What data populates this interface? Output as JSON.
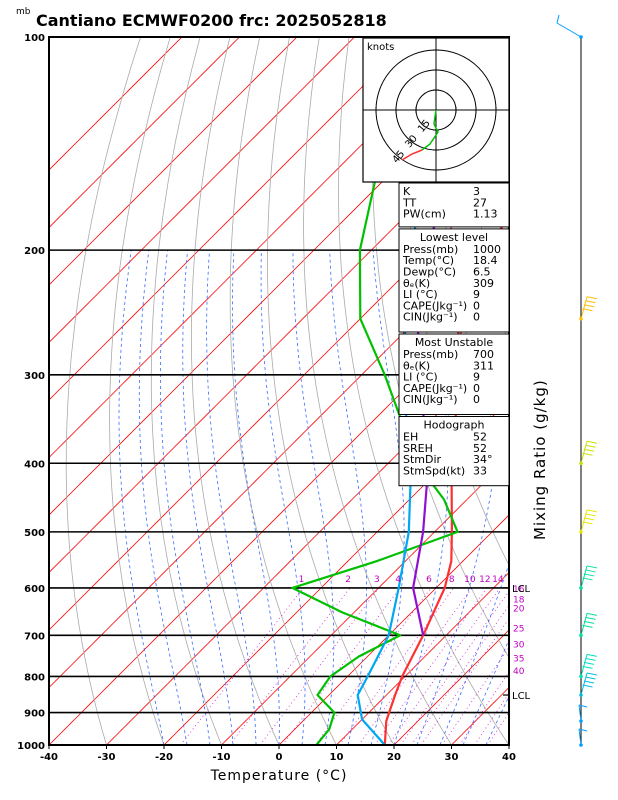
{
  "title": "Cantiano ECMWF0200  frc: 2025052818",
  "pressure_unit": "mb",
  "hodograph_unit": "knots",
  "x_axis_title": "Temperature (°C)",
  "mixing_ratio_title": "Mixing Ratio  (g/kg)",
  "lcl_label": "LCL",
  "chart_data": {
    "type": "line",
    "title": "Cantiano ECMWF0200  frc: 2025052818",
    "xlabel": "Temperature (°C)",
    "ylabel": "",
    "x_range": [
      -40,
      40
    ],
    "y_range": [
      1000,
      100
    ],
    "y_scale": "log-pressure",
    "x_ticks": [
      -40,
      -30,
      -20,
      -10,
      0,
      10,
      20,
      30,
      40
    ],
    "pressure_levels": [
      100,
      200,
      300,
      400,
      500,
      600,
      700,
      800,
      900,
      1000
    ],
    "mixing_ratio_labels": [
      "1",
      "2",
      "3",
      "4",
      "6",
      "8",
      "10",
      "12",
      "14",
      "16",
      "18",
      "20",
      "25",
      "30",
      "35",
      "40"
    ],
    "series": [
      {
        "color": "#ff3030",
        "style": "temperature",
        "points": [
          [
            1000,
            18.4
          ],
          [
            925,
            14.5
          ],
          [
            850,
            11.5
          ],
          [
            800,
            9.5
          ],
          [
            700,
            6.0
          ],
          [
            600,
            1.5
          ],
          [
            550,
            -2.0
          ],
          [
            500,
            -7.0
          ],
          [
            400,
            -19.0
          ],
          [
            300,
            -33.0
          ],
          [
            250,
            -43.0
          ],
          [
            200,
            -50.0
          ],
          [
            150,
            -55.0
          ],
          [
            100,
            -58.0
          ]
        ]
      },
      {
        "color": "#00c000",
        "style": "dewpoint",
        "points": [
          [
            1000,
            6.5
          ],
          [
            950,
            6.0
          ],
          [
            900,
            4.0
          ],
          [
            850,
            -2.0
          ],
          [
            800,
            -3.0
          ],
          [
            750,
            -1.5
          ],
          [
            700,
            2.0
          ],
          [
            650,
            -12.0
          ],
          [
            600,
            -25.0
          ],
          [
            550,
            -15.0
          ],
          [
            500,
            -6.0
          ],
          [
            450,
            -14.0
          ],
          [
            400,
            -25.0
          ],
          [
            300,
            -46.0
          ],
          [
            250,
            -60.0
          ],
          [
            200,
            -72.0
          ],
          [
            150,
            -84.0
          ],
          [
            100,
            -98.0
          ]
        ]
      },
      {
        "color": "#9010d0",
        "style": "parcel",
        "points": [
          [
            700,
            6.0
          ],
          [
            600,
            -4.0
          ],
          [
            500,
            -12.0
          ],
          [
            400,
            -23.0
          ],
          [
            300,
            -40.0
          ],
          [
            250,
            -50.0
          ],
          [
            200,
            -60.0
          ],
          [
            150,
            -72.0
          ],
          [
            120,
            -80.0
          ]
        ]
      },
      {
        "color": "#00a8f0",
        "style": "virtual",
        "points": [
          [
            1000,
            18.4
          ],
          [
            920,
            10.0
          ],
          [
            850,
            5.0
          ],
          [
            800,
            3.5
          ],
          [
            700,
            0.0
          ],
          [
            600,
            -6.5
          ],
          [
            500,
            -14.5
          ],
          [
            400,
            -26.0
          ],
          [
            300,
            -43.0
          ],
          [
            250,
            -52.0
          ],
          [
            200,
            -63.0
          ],
          [
            150,
            -76.0
          ],
          [
            120,
            -83.0
          ]
        ]
      }
    ],
    "lcl_markers": [
      {
        "pressure": 600,
        "label": "LCL"
      },
      {
        "pressure": 850,
        "label": "LCL"
      }
    ]
  },
  "hodograph": {
    "rings": [
      15,
      30,
      45
    ],
    "ring_labels": [
      "15",
      "30",
      "45"
    ]
  },
  "indices": {
    "rows": [
      {
        "label": "K",
        "value": "3"
      },
      {
        "label": "TT",
        "value": "27"
      },
      {
        "label": "PW(cm)",
        "value": "1.13"
      }
    ]
  },
  "lowest_level": {
    "header": "Lowest level",
    "rows": [
      {
        "label": "Press(mb)",
        "value": "1000"
      },
      {
        "label": "Temp(°C)",
        "value": "18.4"
      },
      {
        "label": "Dewp(°C)",
        "value": "6.5"
      },
      {
        "label": "θₑ(K)",
        "value": "309"
      },
      {
        "label": "LI  (°C)",
        "value": "9"
      },
      {
        "label": "CAPE(Jkg⁻¹)",
        "value": "0"
      },
      {
        "label": "CIN(Jkg⁻¹)",
        "value": "0"
      }
    ]
  },
  "most_unstable": {
    "header": "Most Unstable",
    "rows": [
      {
        "label": "Press(mb)",
        "value": "700"
      },
      {
        "label": "θₑ(K)",
        "value": "311"
      },
      {
        "label": "LI  (°C)",
        "value": "9"
      },
      {
        "label": "CAPE(Jkg⁻¹)",
        "value": "0"
      },
      {
        "label": "CIN(Jkg⁻¹)",
        "value": "0"
      }
    ]
  },
  "hodograph_stats": {
    "header": "Hodograph",
    "rows": [
      {
        "label": "EH",
        "value": "52"
      },
      {
        "label": "SREH",
        "value": "52"
      },
      {
        "label": "StmDir",
        "value": "34°"
      },
      {
        "label": "StmSpd(kt)",
        "value": "33"
      }
    ]
  },
  "wind_barbs": [
    {
      "pressure": 100,
      "color": "#00a0ff"
    },
    {
      "pressure": 250,
      "color": "#ffc000"
    },
    {
      "pressure": 400,
      "color": "#c8e000"
    },
    {
      "pressure": 500,
      "color": "#e8e800"
    },
    {
      "pressure": 600,
      "color": "#00e0a0"
    },
    {
      "pressure": 700,
      "color": "#00e0a0"
    },
    {
      "pressure": 800,
      "color": "#00e0c0"
    },
    {
      "pressure": 850,
      "color": "#00c0e0"
    },
    {
      "pressure": 925,
      "color": "#00a0ff"
    },
    {
      "pressure": 1000,
      "color": "#00a0ff"
    }
  ],
  "colors": {
    "isobar": "#000000",
    "isotherm": "#ff0000",
    "dry_adiabat": "#aaaaaa",
    "moist_adiabat": "#3a6cff",
    "mixing_ratio": "#d020d0",
    "temperature": "#ff3030",
    "dewpoint": "#00c000"
  }
}
